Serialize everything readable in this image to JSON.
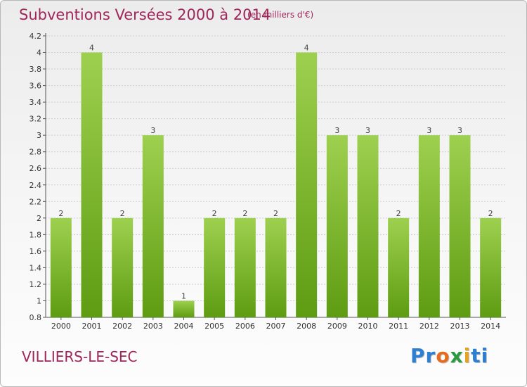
{
  "header": {
    "title": "Subventions Versées 2000 à 2014",
    "subtitle": "(en milliers d'€)"
  },
  "footer": {
    "commune": "VILLIERS-LE-SEC",
    "logo_text": "Proxiti"
  },
  "colors": {
    "title": "#a0265a",
    "bar_top": "#9ed04f",
    "bar_bottom": "#5e9c12",
    "grid": "#cfcfcf"
  },
  "chart_data": {
    "type": "bar",
    "title": "Subventions Versées 2000 à 2014",
    "subtitle": "(en milliers d'€)",
    "xlabel": "",
    "ylabel": "",
    "categories": [
      "2000",
      "2001",
      "2002",
      "2003",
      "2004",
      "2005",
      "2006",
      "2007",
      "2008",
      "2009",
      "2010",
      "2011",
      "2012",
      "2013",
      "2014"
    ],
    "values": [
      2,
      4,
      2,
      3,
      1,
      2,
      2,
      2,
      4,
      3,
      3,
      2,
      3,
      3,
      2
    ],
    "data_labels": [
      "2",
      "4",
      "2",
      "3",
      "1",
      "2",
      "2",
      "2",
      "4",
      "3",
      "3",
      "2",
      "3",
      "3",
      "2"
    ],
    "ylim": [
      0.8,
      4.2
    ],
    "yticks": [
      0.8,
      1,
      1.2,
      1.4,
      1.6,
      1.8,
      2,
      2.2,
      2.4,
      2.6,
      2.8,
      3,
      3.2,
      3.4,
      3.6,
      3.8,
      4,
      4.2
    ],
    "ytick_labels": [
      "0.8",
      "1",
      "1.2",
      "1.4",
      "1.6",
      "1.8",
      "2",
      "2.2",
      "2.4",
      "2.6",
      "2.8",
      "3",
      "3.2",
      "3.4",
      "3.6",
      "3.8",
      "4",
      "4.2"
    ],
    "grid": true,
    "legend": "none"
  }
}
